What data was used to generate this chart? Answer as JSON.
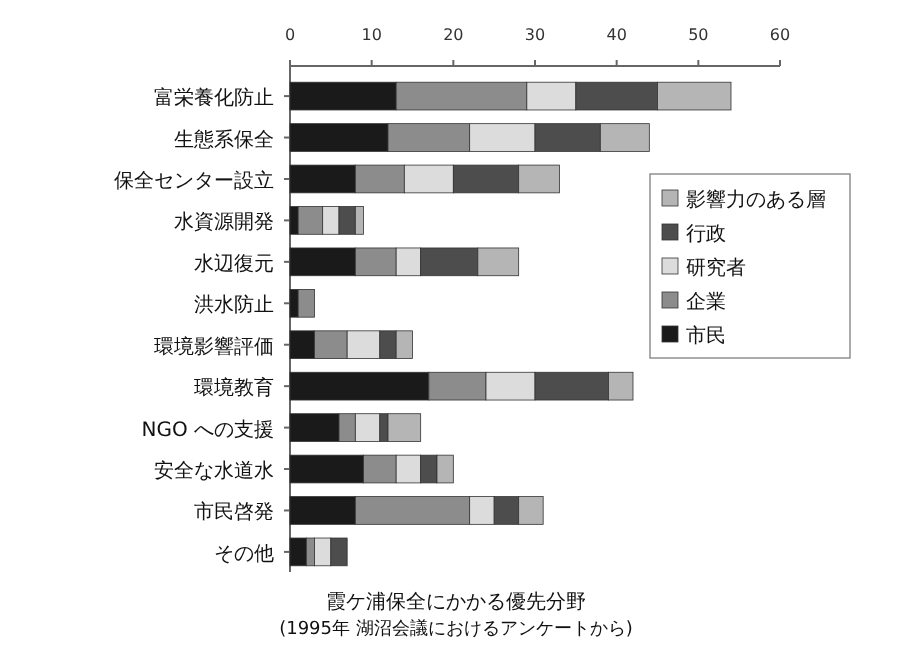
{
  "chart_data": {
    "type": "bar",
    "orientation": "horizontal",
    "stacked": true,
    "title": "霞ケ浦保全にかかる優先分野",
    "subtitle": "(1995年 湖沼会議におけるアンケートから)",
    "categories": [
      "富栄養化防止",
      "生態系保全",
      "保全センター設立",
      "水資源開発",
      "水辺復元",
      "洪水防止",
      "環境影響評価",
      "環境教育",
      "NGO への支援",
      "安全な水道水",
      "市民啓発",
      "その他"
    ],
    "series": [
      {
        "name": "市民",
        "color": "#1a1a1a",
        "values": [
          13,
          12,
          8,
          1,
          8,
          1,
          3,
          17,
          6,
          9,
          8,
          2
        ]
      },
      {
        "name": "企業",
        "color": "#8c8c8c",
        "values": [
          16,
          10,
          6,
          3,
          5,
          2,
          4,
          7,
          2,
          4,
          14,
          1
        ]
      },
      {
        "name": "研究者",
        "color": "#dcdcdc",
        "values": [
          6,
          8,
          6,
          2,
          3,
          0,
          4,
          6,
          3,
          3,
          3,
          2
        ]
      },
      {
        "name": "行政",
        "color": "#4d4d4d",
        "values": [
          10,
          8,
          8,
          2,
          7,
          0,
          2,
          9,
          1,
          2,
          3,
          2
        ]
      },
      {
        "name": "影響力のある層",
        "color": "#b5b5b5",
        "values": [
          9,
          6,
          5,
          1,
          5,
          0,
          2,
          3,
          4,
          2,
          3,
          0
        ]
      }
    ],
    "xlim": [
      0,
      60
    ],
    "xticks": [
      0,
      10,
      20,
      30,
      40,
      50,
      60
    ],
    "grid": false,
    "legend": "right"
  }
}
